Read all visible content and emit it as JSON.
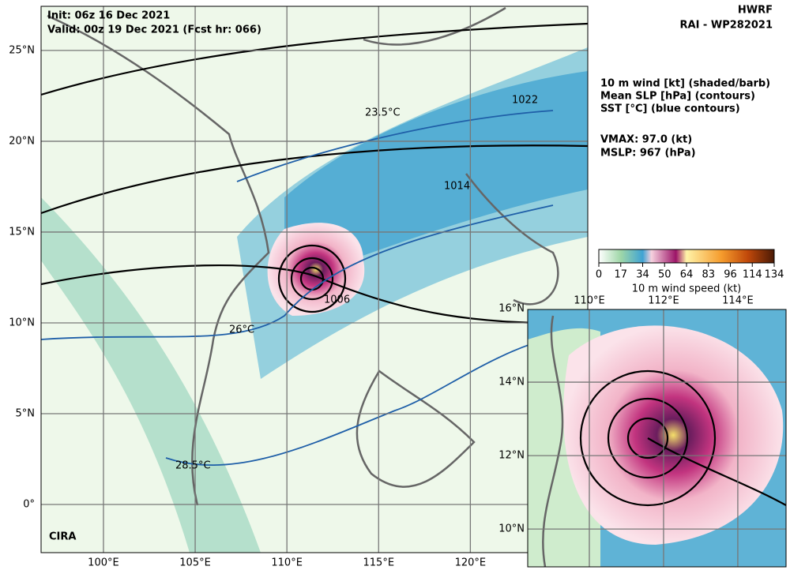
{
  "header": {
    "init": "Init:  06z 16 Dec 2021",
    "valid": "Valid: 00z 19 Dec 2021 (Fcst hr: 066)",
    "model": "HWRF",
    "storm": "RAI - WP282021"
  },
  "legend": {
    "lines": [
      "10 m wind [kt] (shaded/barb)",
      "Mean SLP [hPa] (contours)",
      "SST [°C] (blue contours)"
    ],
    "vmax": "VMAX:  97.0 (kt)",
    "mslp": "MSLP:  967 (hPa)"
  },
  "colorbar": {
    "ticks": [
      0,
      17,
      34,
      50,
      64,
      83,
      96,
      114,
      134
    ],
    "label": "10 m wind speed (kt)"
  },
  "map": {
    "lonlim": [
      96.6,
      126.4
    ],
    "latlim": [
      -2.65,
      27.43
    ],
    "lon_ticks": [
      {
        "value": 100,
        "label": "100°E"
      },
      {
        "value": 105,
        "label": "105°E"
      },
      {
        "value": 110,
        "label": "110°E"
      },
      {
        "value": 115,
        "label": "115°E"
      },
      {
        "value": 120,
        "label": "120°E"
      }
    ],
    "lat_ticks": [
      {
        "value": 0,
        "label": "0°"
      },
      {
        "value": 5,
        "label": "5°N"
      },
      {
        "value": 10,
        "label": "10°N"
      },
      {
        "value": 15,
        "label": "15°N"
      },
      {
        "value": 20,
        "label": "20°N"
      },
      {
        "value": 25,
        "label": "25°N"
      }
    ],
    "contour_labels": [
      "1022",
      "1014",
      "1006",
      "23.5°C",
      "26°C",
      "28.5°C"
    ]
  },
  "inset": {
    "lonlim": [
      108.34,
      115.3
    ],
    "latlim": [
      8.97,
      15.98
    ],
    "lon_ticks": [
      {
        "value": 110,
        "label": "110°E"
      },
      {
        "value": 112,
        "label": "112°E"
      },
      {
        "value": 114,
        "label": "114°E"
      }
    ],
    "lat_ticks": [
      {
        "value": 10,
        "label": "10°N"
      },
      {
        "value": 12,
        "label": "12°N"
      },
      {
        "value": 14,
        "label": "14°N"
      },
      {
        "value": 16,
        "label": "16°N"
      }
    ]
  }
}
